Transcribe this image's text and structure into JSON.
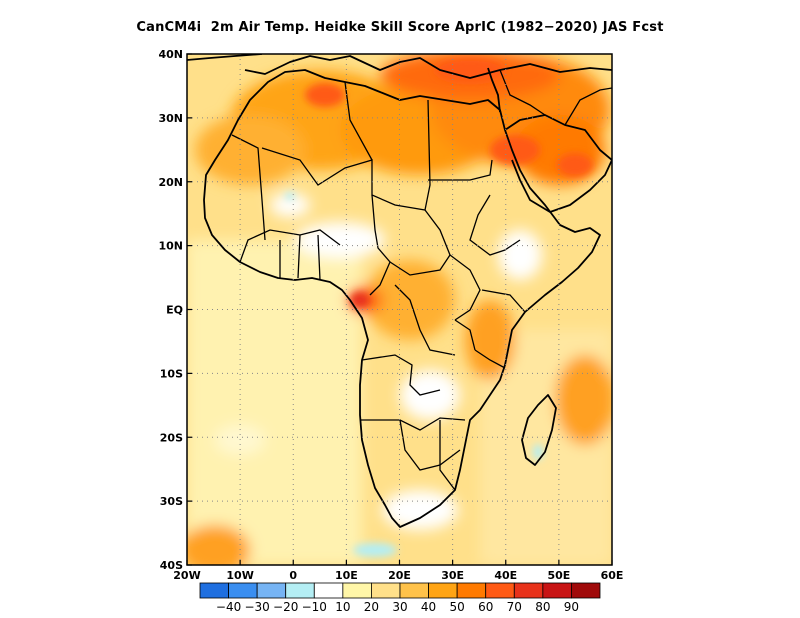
{
  "title": "CanCM4i  2m Air Temp. Heidke Skill Score AprIC (1982−2020) JAS Fcst",
  "map": {
    "lon_range": [
      -20,
      60
    ],
    "lat_range": [
      -40,
      40
    ],
    "lon_ticks": [
      {
        "value": -20,
        "label": "20W"
      },
      {
        "value": -10,
        "label": "10W"
      },
      {
        "value": 0,
        "label": "0"
      },
      {
        "value": 10,
        "label": "10E"
      },
      {
        "value": 20,
        "label": "20E"
      },
      {
        "value": 30,
        "label": "30E"
      },
      {
        "value": 40,
        "label": "40E"
      },
      {
        "value": 50,
        "label": "50E"
      },
      {
        "value": 60,
        "label": "60E"
      }
    ],
    "lat_ticks": [
      {
        "value": 40,
        "label": "40N"
      },
      {
        "value": 30,
        "label": "30N"
      },
      {
        "value": 20,
        "label": "20N"
      },
      {
        "value": 10,
        "label": "10N"
      },
      {
        "value": 0,
        "label": "EQ"
      },
      {
        "value": -10,
        "label": "10S"
      },
      {
        "value": -20,
        "label": "20S"
      },
      {
        "value": -30,
        "label": "30S"
      },
      {
        "value": -40,
        "label": "40S"
      }
    ],
    "gridlines": "dotted"
  },
  "colorbar": {
    "colors": [
      "#1f6fe0",
      "#3a8ef0",
      "#76b4f4",
      "#b4eef4",
      "#ffffff",
      "#fff6a8",
      "#ffe08a",
      "#ffc24a",
      "#ffa414",
      "#ff7a00",
      "#ff5a14",
      "#e8321a",
      "#c81414",
      "#a00a0a"
    ],
    "labels": [
      "−40",
      "−30",
      "−20",
      "−10",
      "10",
      "20",
      "30",
      "40",
      "50",
      "60",
      "70",
      "80",
      "90"
    ]
  }
}
